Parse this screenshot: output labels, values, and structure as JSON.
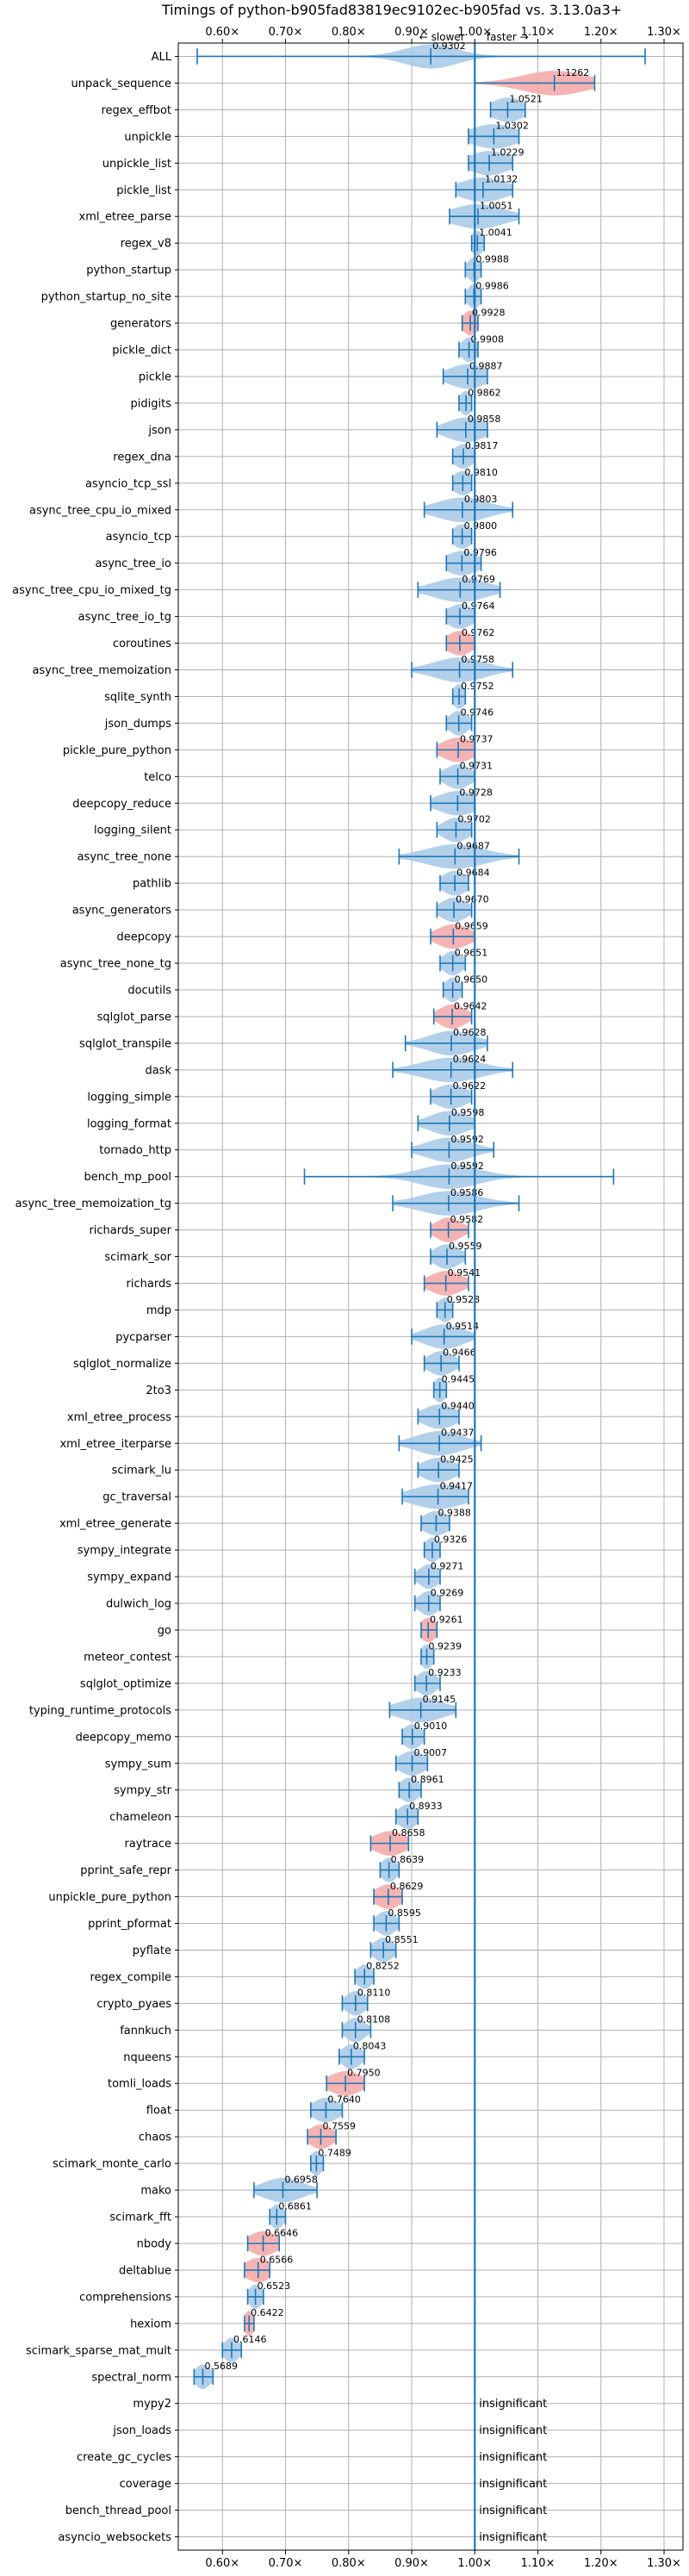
{
  "chart_data": {
    "type": "violin",
    "title": "Timings of python-b905fad83819ec9102ec-b905fad vs. 3.13.0a3+",
    "xlim": [
      0.53,
      1.33
    ],
    "xticks": [
      0.6,
      0.7,
      0.8,
      0.9,
      1.0,
      1.1,
      1.2,
      1.3
    ],
    "xtick_labels": [
      "0.60×",
      "0.70×",
      "0.80×",
      "0.90×",
      "1.00×",
      "1.10×",
      "1.20×",
      "1.30×"
    ],
    "direction_labels": {
      "slower": "← slower",
      "faster": "faster →"
    },
    "reference_line": 1.0,
    "grid": true,
    "insignificant_label": "insignificant",
    "colors": {
      "faster": "#a6c8e8",
      "slower": "#f4a6a6",
      "accent": "#1f77b4",
      "grid": "#b0b0b0"
    },
    "benchmarks": [
      {
        "name": "ALL",
        "value": 0.9302,
        "lo": 0.56,
        "hi": 1.27,
        "spread": 0.04,
        "status": "faster",
        "label": "0.9302"
      },
      {
        "name": "unpack_sequence",
        "value": 1.1262,
        "lo": 1.0,
        "hi": 1.19,
        "spread": 0.05,
        "status": "slower",
        "label": "1.1262"
      },
      {
        "name": "regex_effbot",
        "value": 1.0521,
        "lo": 1.025,
        "hi": 1.08,
        "spread": 0.025,
        "status": "faster",
        "label": "1.0521"
      },
      {
        "name": "unpickle",
        "value": 1.0302,
        "lo": 0.99,
        "hi": 1.07,
        "spread": 0.035,
        "status": "faster",
        "label": "1.0302"
      },
      {
        "name": "unpickle_list",
        "value": 1.0229,
        "lo": 0.99,
        "hi": 1.06,
        "spread": 0.03,
        "status": "faster",
        "label": "1.0229"
      },
      {
        "name": "pickle_list",
        "value": 1.0132,
        "lo": 0.97,
        "hi": 1.06,
        "spread": 0.035,
        "status": "faster",
        "label": "1.0132"
      },
      {
        "name": "xml_etree_parse",
        "value": 1.0051,
        "lo": 0.96,
        "hi": 1.07,
        "spread": 0.04,
        "status": "faster",
        "label": "1.0051"
      },
      {
        "name": "regex_v8",
        "value": 1.0041,
        "lo": 0.995,
        "hi": 1.015,
        "spread": 0.01,
        "status": "faster",
        "label": "1.0041"
      },
      {
        "name": "python_startup",
        "value": 0.9988,
        "lo": 0.985,
        "hi": 1.01,
        "spread": 0.01,
        "status": "faster",
        "label": "0.9988"
      },
      {
        "name": "python_startup_no_site",
        "value": 0.9986,
        "lo": 0.985,
        "hi": 1.01,
        "spread": 0.01,
        "status": "faster",
        "label": "0.9986"
      },
      {
        "name": "generators",
        "value": 0.9928,
        "lo": 0.98,
        "hi": 1.005,
        "spread": 0.012,
        "status": "slower",
        "label": "0.9928"
      },
      {
        "name": "pickle_dict",
        "value": 0.9908,
        "lo": 0.975,
        "hi": 1.005,
        "spread": 0.012,
        "status": "faster",
        "label": "0.9908"
      },
      {
        "name": "pickle",
        "value": 0.9887,
        "lo": 0.95,
        "hi": 1.02,
        "spread": 0.03,
        "status": "faster",
        "label": "0.9887"
      },
      {
        "name": "pidigits",
        "value": 0.9862,
        "lo": 0.975,
        "hi": 0.995,
        "spread": 0.01,
        "status": "faster",
        "label": "0.9862"
      },
      {
        "name": "json",
        "value": 0.9858,
        "lo": 0.94,
        "hi": 1.02,
        "spread": 0.03,
        "status": "faster",
        "label": "0.9858"
      },
      {
        "name": "regex_dna",
        "value": 0.9817,
        "lo": 0.965,
        "hi": 1.0,
        "spread": 0.015,
        "status": "faster",
        "label": "0.9817"
      },
      {
        "name": "asyncio_tcp_ssl",
        "value": 0.981,
        "lo": 0.965,
        "hi": 0.995,
        "spread": 0.015,
        "status": "faster",
        "label": "0.9810"
      },
      {
        "name": "async_tree_cpu_io_mixed",
        "value": 0.9803,
        "lo": 0.92,
        "hi": 1.06,
        "spread": 0.04,
        "status": "faster",
        "label": "0.9803"
      },
      {
        "name": "asyncio_tcp",
        "value": 0.98,
        "lo": 0.965,
        "hi": 0.995,
        "spread": 0.015,
        "status": "faster",
        "label": "0.9800"
      },
      {
        "name": "async_tree_io",
        "value": 0.9796,
        "lo": 0.955,
        "hi": 1.01,
        "spread": 0.025,
        "status": "faster",
        "label": "0.9796"
      },
      {
        "name": "async_tree_cpu_io_mixed_tg",
        "value": 0.9769,
        "lo": 0.91,
        "hi": 1.04,
        "spread": 0.04,
        "status": "faster",
        "label": "0.9769"
      },
      {
        "name": "async_tree_io_tg",
        "value": 0.9764,
        "lo": 0.955,
        "hi": 1.0,
        "spread": 0.02,
        "status": "faster",
        "label": "0.9764"
      },
      {
        "name": "coroutines",
        "value": 0.9762,
        "lo": 0.955,
        "hi": 1.0,
        "spread": 0.02,
        "status": "slower",
        "label": "0.9762"
      },
      {
        "name": "async_tree_memoization",
        "value": 0.9758,
        "lo": 0.9,
        "hi": 1.06,
        "spread": 0.04,
        "status": "faster",
        "label": "0.9758"
      },
      {
        "name": "sqlite_synth",
        "value": 0.9752,
        "lo": 0.965,
        "hi": 0.985,
        "spread": 0.01,
        "status": "faster",
        "label": "0.9752"
      },
      {
        "name": "json_dumps",
        "value": 0.9746,
        "lo": 0.955,
        "hi": 0.995,
        "spread": 0.015,
        "status": "faster",
        "label": "0.9746"
      },
      {
        "name": "pickle_pure_python",
        "value": 0.9737,
        "lo": 0.94,
        "hi": 1.0,
        "spread": 0.025,
        "status": "slower",
        "label": "0.9737"
      },
      {
        "name": "telco",
        "value": 0.9731,
        "lo": 0.945,
        "hi": 1.0,
        "spread": 0.02,
        "status": "faster",
        "label": "0.9731"
      },
      {
        "name": "deepcopy_reduce",
        "value": 0.9728,
        "lo": 0.93,
        "hi": 1.0,
        "spread": 0.03,
        "status": "faster",
        "label": "0.9728"
      },
      {
        "name": "logging_silent",
        "value": 0.9702,
        "lo": 0.94,
        "hi": 0.995,
        "spread": 0.02,
        "status": "faster",
        "label": "0.9702"
      },
      {
        "name": "async_tree_none",
        "value": 0.9687,
        "lo": 0.88,
        "hi": 1.07,
        "spread": 0.045,
        "status": "faster",
        "label": "0.9687"
      },
      {
        "name": "pathlib",
        "value": 0.9684,
        "lo": 0.945,
        "hi": 0.99,
        "spread": 0.02,
        "status": "faster",
        "label": "0.9684"
      },
      {
        "name": "async_generators",
        "value": 0.967,
        "lo": 0.94,
        "hi": 0.995,
        "spread": 0.02,
        "status": "faster",
        "label": "0.9670"
      },
      {
        "name": "deepcopy",
        "value": 0.9659,
        "lo": 0.93,
        "hi": 1.0,
        "spread": 0.025,
        "status": "slower",
        "label": "0.9659"
      },
      {
        "name": "async_tree_none_tg",
        "value": 0.9651,
        "lo": 0.945,
        "hi": 0.985,
        "spread": 0.015,
        "status": "faster",
        "label": "0.9651"
      },
      {
        "name": "docutils",
        "value": 0.965,
        "lo": 0.95,
        "hi": 0.98,
        "spread": 0.012,
        "status": "faster",
        "label": "0.9650"
      },
      {
        "name": "sqlglot_parse",
        "value": 0.9642,
        "lo": 0.935,
        "hi": 0.995,
        "spread": 0.02,
        "status": "slower",
        "label": "0.9642"
      },
      {
        "name": "sqlglot_transpile",
        "value": 0.9628,
        "lo": 0.89,
        "hi": 1.02,
        "spread": 0.035,
        "status": "faster",
        "label": "0.9628"
      },
      {
        "name": "dask",
        "value": 0.9624,
        "lo": 0.87,
        "hi": 1.06,
        "spread": 0.045,
        "status": "faster",
        "label": "0.9624"
      },
      {
        "name": "logging_simple",
        "value": 0.9622,
        "lo": 0.93,
        "hi": 0.995,
        "spread": 0.025,
        "status": "faster",
        "label": "0.9622"
      },
      {
        "name": "logging_format",
        "value": 0.9598,
        "lo": 0.91,
        "hi": 1.0,
        "spread": 0.03,
        "status": "faster",
        "label": "0.9598"
      },
      {
        "name": "tornado_http",
        "value": 0.9592,
        "lo": 0.9,
        "hi": 1.03,
        "spread": 0.035,
        "status": "faster",
        "label": "0.9592"
      },
      {
        "name": "bench_mp_pool",
        "value": 0.9592,
        "lo": 0.73,
        "hi": 1.22,
        "spread": 0.045,
        "status": "faster",
        "label": "0.9592"
      },
      {
        "name": "async_tree_memoization_tg",
        "value": 0.9586,
        "lo": 0.87,
        "hi": 1.07,
        "spread": 0.045,
        "status": "faster",
        "label": "0.9586"
      },
      {
        "name": "richards_super",
        "value": 0.9582,
        "lo": 0.93,
        "hi": 0.99,
        "spread": 0.02,
        "status": "slower",
        "label": "0.9582"
      },
      {
        "name": "scimark_sor",
        "value": 0.9559,
        "lo": 0.93,
        "hi": 0.985,
        "spread": 0.02,
        "status": "faster",
        "label": "0.9559"
      },
      {
        "name": "richards",
        "value": 0.9541,
        "lo": 0.92,
        "hi": 0.99,
        "spread": 0.025,
        "status": "slower",
        "label": "0.9541"
      },
      {
        "name": "mdp",
        "value": 0.9528,
        "lo": 0.94,
        "hi": 0.965,
        "spread": 0.012,
        "status": "faster",
        "label": "0.9528"
      },
      {
        "name": "pycparser",
        "value": 0.9514,
        "lo": 0.9,
        "hi": 1.0,
        "spread": 0.03,
        "status": "faster",
        "label": "0.9514"
      },
      {
        "name": "sqlglot_normalize",
        "value": 0.9466,
        "lo": 0.92,
        "hi": 0.975,
        "spread": 0.02,
        "status": "faster",
        "label": "0.9466"
      },
      {
        "name": "2to3",
        "value": 0.9445,
        "lo": 0.935,
        "hi": 0.955,
        "spread": 0.01,
        "status": "faster",
        "label": "0.9445"
      },
      {
        "name": "xml_etree_process",
        "value": 0.944,
        "lo": 0.91,
        "hi": 0.975,
        "spread": 0.025,
        "status": "faster",
        "label": "0.9440"
      },
      {
        "name": "xml_etree_iterparse",
        "value": 0.9437,
        "lo": 0.88,
        "hi": 1.01,
        "spread": 0.035,
        "status": "faster",
        "label": "0.9437"
      },
      {
        "name": "scimark_lu",
        "value": 0.9425,
        "lo": 0.91,
        "hi": 0.975,
        "spread": 0.025,
        "status": "faster",
        "label": "0.9425"
      },
      {
        "name": "gc_traversal",
        "value": 0.9417,
        "lo": 0.885,
        "hi": 0.99,
        "spread": 0.04,
        "status": "faster",
        "label": "0.9417"
      },
      {
        "name": "xml_etree_generate",
        "value": 0.9388,
        "lo": 0.915,
        "hi": 0.96,
        "spread": 0.02,
        "status": "faster",
        "label": "0.9388"
      },
      {
        "name": "sympy_integrate",
        "value": 0.9326,
        "lo": 0.92,
        "hi": 0.945,
        "spread": 0.012,
        "status": "faster",
        "label": "0.9326"
      },
      {
        "name": "sympy_expand",
        "value": 0.9271,
        "lo": 0.905,
        "hi": 0.945,
        "spread": 0.015,
        "status": "faster",
        "label": "0.9271"
      },
      {
        "name": "dulwich_log",
        "value": 0.9269,
        "lo": 0.905,
        "hi": 0.945,
        "spread": 0.015,
        "status": "faster",
        "label": "0.9269"
      },
      {
        "name": "go",
        "value": 0.9261,
        "lo": 0.915,
        "hi": 0.94,
        "spread": 0.012,
        "status": "slower",
        "label": "0.9261"
      },
      {
        "name": "meteor_contest",
        "value": 0.9239,
        "lo": 0.915,
        "hi": 0.935,
        "spread": 0.01,
        "status": "faster",
        "label": "0.9239"
      },
      {
        "name": "sqlglot_optimize",
        "value": 0.9233,
        "lo": 0.905,
        "hi": 0.945,
        "spread": 0.015,
        "status": "faster",
        "label": "0.9233"
      },
      {
        "name": "typing_runtime_protocols",
        "value": 0.9145,
        "lo": 0.865,
        "hi": 0.97,
        "spread": 0.035,
        "status": "faster",
        "label": "0.9145"
      },
      {
        "name": "deepcopy_memo",
        "value": 0.901,
        "lo": 0.885,
        "hi": 0.92,
        "spread": 0.015,
        "status": "faster",
        "label": "0.9010"
      },
      {
        "name": "sympy_sum",
        "value": 0.9007,
        "lo": 0.875,
        "hi": 0.925,
        "spread": 0.02,
        "status": "faster",
        "label": "0.9007"
      },
      {
        "name": "sympy_str",
        "value": 0.8961,
        "lo": 0.88,
        "hi": 0.915,
        "spread": 0.015,
        "status": "faster",
        "label": "0.8961"
      },
      {
        "name": "chameleon",
        "value": 0.8933,
        "lo": 0.875,
        "hi": 0.91,
        "spread": 0.015,
        "status": "faster",
        "label": "0.8933"
      },
      {
        "name": "raytrace",
        "value": 0.8658,
        "lo": 0.835,
        "hi": 0.895,
        "spread": 0.025,
        "status": "slower",
        "label": "0.8658"
      },
      {
        "name": "pprint_safe_repr",
        "value": 0.8639,
        "lo": 0.85,
        "hi": 0.88,
        "spread": 0.012,
        "status": "faster",
        "label": "0.8639"
      },
      {
        "name": "unpickle_pure_python",
        "value": 0.8629,
        "lo": 0.84,
        "hi": 0.885,
        "spread": 0.02,
        "status": "slower",
        "label": "0.8629"
      },
      {
        "name": "pprint_pformat",
        "value": 0.8595,
        "lo": 0.84,
        "hi": 0.88,
        "spread": 0.015,
        "status": "faster",
        "label": "0.8595"
      },
      {
        "name": "pyflate",
        "value": 0.8551,
        "lo": 0.835,
        "hi": 0.875,
        "spread": 0.015,
        "status": "faster",
        "label": "0.8551"
      },
      {
        "name": "regex_compile",
        "value": 0.8252,
        "lo": 0.81,
        "hi": 0.84,
        "spread": 0.012,
        "status": "faster",
        "label": "0.8252"
      },
      {
        "name": "crypto_pyaes",
        "value": 0.811,
        "lo": 0.79,
        "hi": 0.83,
        "spread": 0.015,
        "status": "faster",
        "label": "0.8110"
      },
      {
        "name": "fannkuch",
        "value": 0.8108,
        "lo": 0.79,
        "hi": 0.835,
        "spread": 0.015,
        "status": "faster",
        "label": "0.8108"
      },
      {
        "name": "nqueens",
        "value": 0.8043,
        "lo": 0.785,
        "hi": 0.825,
        "spread": 0.015,
        "status": "faster",
        "label": "0.8043"
      },
      {
        "name": "tomli_loads",
        "value": 0.795,
        "lo": 0.765,
        "hi": 0.825,
        "spread": 0.025,
        "status": "slower",
        "label": "0.7950"
      },
      {
        "name": "float",
        "value": 0.764,
        "lo": 0.74,
        "hi": 0.79,
        "spread": 0.02,
        "status": "faster",
        "label": "0.7640"
      },
      {
        "name": "chaos",
        "value": 0.7559,
        "lo": 0.735,
        "hi": 0.78,
        "spread": 0.018,
        "status": "slower",
        "label": "0.7559"
      },
      {
        "name": "scimark_monte_carlo",
        "value": 0.7489,
        "lo": 0.74,
        "hi": 0.76,
        "spread": 0.01,
        "status": "faster",
        "label": "0.7489"
      },
      {
        "name": "mako",
        "value": 0.6958,
        "lo": 0.65,
        "hi": 0.75,
        "spread": 0.03,
        "status": "faster",
        "label": "0.6958"
      },
      {
        "name": "scimark_fft",
        "value": 0.6861,
        "lo": 0.675,
        "hi": 0.7,
        "spread": 0.01,
        "status": "faster",
        "label": "0.6861"
      },
      {
        "name": "nbody",
        "value": 0.6646,
        "lo": 0.64,
        "hi": 0.69,
        "spread": 0.022,
        "status": "slower",
        "label": "0.6646"
      },
      {
        "name": "deltablue",
        "value": 0.6566,
        "lo": 0.635,
        "hi": 0.675,
        "spread": 0.02,
        "status": "slower",
        "label": "0.6566"
      },
      {
        "name": "comprehensions",
        "value": 0.6523,
        "lo": 0.64,
        "hi": 0.665,
        "spread": 0.01,
        "status": "faster",
        "label": "0.6523"
      },
      {
        "name": "hexiom",
        "value": 0.6422,
        "lo": 0.635,
        "hi": 0.65,
        "spread": 0.008,
        "status": "slower",
        "label": "0.6422"
      },
      {
        "name": "scimark_sparse_mat_mult",
        "value": 0.6146,
        "lo": 0.6,
        "hi": 0.63,
        "spread": 0.012,
        "status": "faster",
        "label": "0.6146"
      },
      {
        "name": "spectral_norm",
        "value": 0.5689,
        "lo": 0.555,
        "hi": 0.585,
        "spread": 0.012,
        "status": "faster",
        "label": "0.5689"
      },
      {
        "name": "mypy2",
        "value": null,
        "status": "insignificant"
      },
      {
        "name": "json_loads",
        "value": null,
        "status": "insignificant"
      },
      {
        "name": "create_gc_cycles",
        "value": null,
        "status": "insignificant"
      },
      {
        "name": "coverage",
        "value": null,
        "status": "insignificant"
      },
      {
        "name": "bench_thread_pool",
        "value": null,
        "status": "insignificant"
      },
      {
        "name": "asyncio_websockets",
        "value": null,
        "status": "insignificant"
      }
    ]
  }
}
